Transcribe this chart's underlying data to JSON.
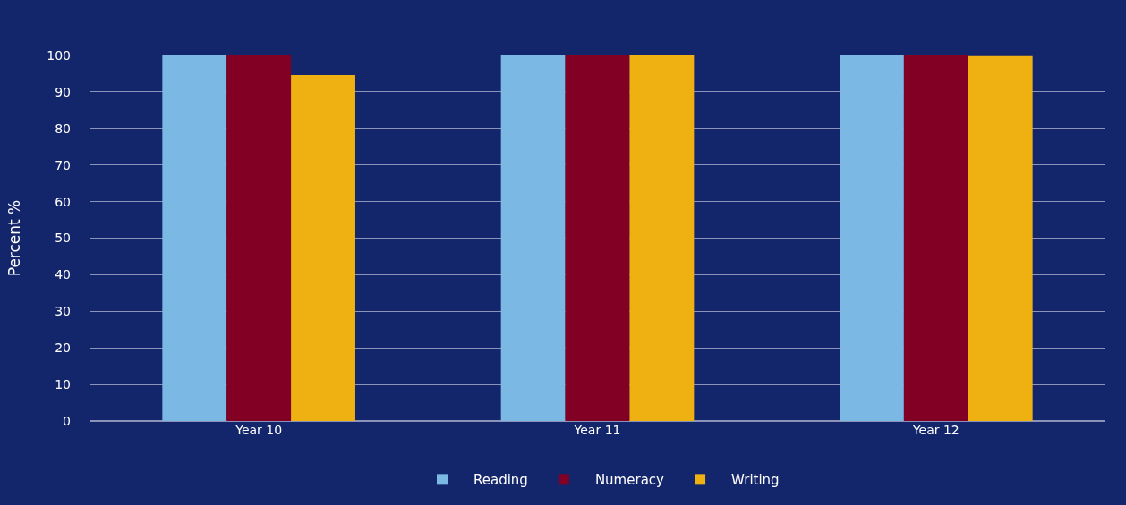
{
  "chart_data": {
    "type": "bar",
    "ylabel": "Percent %",
    "categories": [
      "Year 10",
      "Year 11",
      "Year 12"
    ],
    "series": [
      {
        "name": "Reading",
        "color": "#7cb8e4",
        "values": [
          100,
          100,
          100
        ]
      },
      {
        "name": "Numeracy",
        "color": "#820024",
        "values": [
          100,
          100,
          100
        ]
      },
      {
        "name": "Writing",
        "color": "#eeb111",
        "values": [
          94.6,
          100,
          99.8
        ]
      }
    ],
    "ylim": [
      0,
      100
    ],
    "yticks": [
      0,
      10,
      20,
      30,
      40,
      50,
      60,
      70,
      80,
      90,
      100
    ],
    "grid": "y",
    "legend": "bottom"
  }
}
